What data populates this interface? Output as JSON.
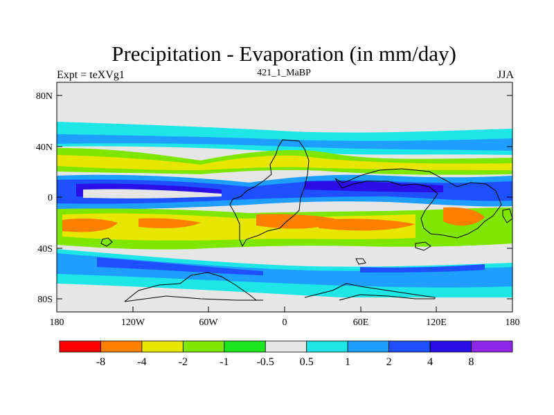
{
  "title": "Precipitation - Evaporation (in mm/day)",
  "left_subtitle": "Expt = teXVg1",
  "center_subtitle": "421_1_MaBP",
  "right_subtitle": "JJA",
  "lat_ticks": [
    "80N",
    "40N",
    "0",
    "40S",
    "80S"
  ],
  "lon_ticks": [
    "180",
    "120W",
    "60W",
    "0",
    "60E",
    "120E",
    "180"
  ],
  "colorbar": {
    "colors": [
      "#ff0000",
      "#ff7f00",
      "#e6e600",
      "#7fe600",
      "#1ee61e",
      "#e6e6e6",
      "#1ee6e6",
      "#1e9eff",
      "#1e50ff",
      "#2a10e6",
      "#8c28e6"
    ],
    "labels": [
      "-8",
      "-4",
      "-2",
      "-1",
      "-0.5",
      "0.5",
      "1",
      "2",
      "4",
      "8"
    ]
  }
}
